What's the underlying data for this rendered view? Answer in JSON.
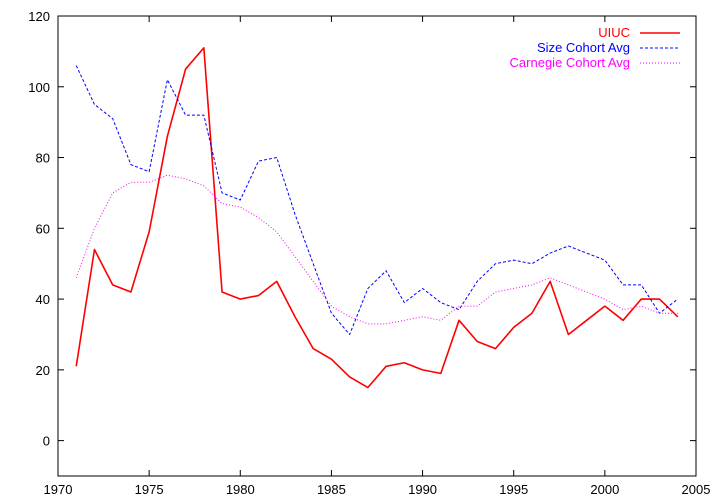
{
  "chart_data": {
    "type": "line",
    "grid": false,
    "legend_position": "top-right",
    "xlim": [
      1970,
      2005
    ],
    "ylim": [
      -10,
      120
    ],
    "x_ticks": [
      1970,
      1975,
      1980,
      1985,
      1990,
      1995,
      2000,
      2005
    ],
    "y_ticks": [
      0,
      20,
      40,
      60,
      80,
      100,
      120
    ],
    "x_tick_labels": [
      "1970",
      "1975",
      "1980",
      "1985",
      "1990",
      "1995",
      "2000",
      "2005"
    ],
    "y_tick_labels": [
      "0",
      "20",
      "40",
      "60",
      "80",
      "100",
      "120"
    ],
    "x": [
      1971,
      1972,
      1973,
      1974,
      1975,
      1976,
      1977,
      1978,
      1979,
      1980,
      1981,
      1982,
      1983,
      1984,
      1985,
      1986,
      1987,
      1988,
      1989,
      1990,
      1991,
      1992,
      1993,
      1994,
      1995,
      1996,
      1997,
      1998,
      1999,
      2000,
      2001,
      2002,
      2003,
      2004
    ],
    "series": [
      {
        "name": "UIUC",
        "color": "#ff0000",
        "style": "solid",
        "values": [
          21,
          54,
          44,
          42,
          59,
          86,
          105,
          111,
          42,
          40,
          41,
          45,
          35,
          26,
          23,
          18,
          15,
          21,
          22,
          20,
          19,
          34,
          28,
          26,
          32,
          36,
          45,
          30,
          34,
          38,
          34,
          40,
          40,
          35
        ]
      },
      {
        "name": "Size Cohort Avg",
        "color": "#0000ff",
        "style": "dashed",
        "values": [
          106,
          95,
          91,
          78,
          76,
          102,
          92,
          92,
          70,
          68,
          79,
          80,
          64,
          50,
          36,
          30,
          43,
          48,
          39,
          43,
          39,
          37,
          45,
          50,
          51,
          50,
          53,
          55,
          53,
          51,
          44,
          44,
          36,
          40
        ]
      },
      {
        "name": "Carnegie Cohort Avg",
        "color": "#ff00ff",
        "style": "dotted",
        "values": [
          46,
          60,
          70,
          73,
          73,
          75,
          74,
          72,
          67,
          66,
          63,
          59,
          52,
          45,
          38,
          35,
          33,
          33,
          34,
          35,
          34,
          38,
          38,
          42,
          43,
          44,
          46,
          44,
          42,
          40,
          37,
          38,
          36,
          36
        ]
      }
    ]
  }
}
